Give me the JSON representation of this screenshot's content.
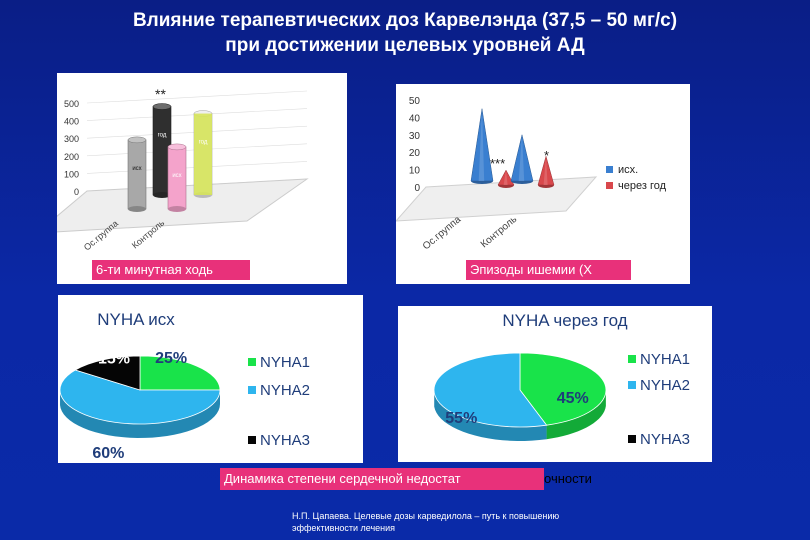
{
  "slide": {
    "title_line1": "Влияние терапевтических доз Карвелэнда (37,5 – 50 мг/с)",
    "title_line2": "при достижении целевых уровней АД",
    "footer_line1": "Н.П. Цапаева. Целевые дозы карведилола – путь к повышению",
    "footer_line2": "эффективности лечения"
  },
  "colors": {
    "background": "#0b24a0",
    "label_pink": "#e8317a",
    "pie_blue": "#2eb5ee",
    "pie_green": "#19e34a",
    "pie_black": "#050505",
    "cone_blue": "#3a7fd0",
    "cone_red": "#d9484c"
  },
  "chart_data": [
    {
      "type": "bar",
      "label": "6-ти минутная ходь",
      "categories": [
        "Ос.группа",
        "Контроль"
      ],
      "series": [
        {
          "name": "исх",
          "values": [
            370,
            330
          ]
        },
        {
          "name": "год",
          "values": [
            480,
            440
          ]
        }
      ],
      "ylim": [
        0,
        500
      ],
      "yticks": [
        "0",
        "100",
        "200",
        "300",
        "400",
        "500"
      ],
      "annotations": [
        "**"
      ]
    },
    {
      "type": "bar",
      "label": "Эпизоды ишемии (Х",
      "categories": [
        "Ос.группа",
        "Контроль"
      ],
      "series": [
        {
          "name": "исх.",
          "values": [
            45,
            30
          ]
        },
        {
          "name": "через год",
          "values": [
            12,
            20
          ]
        }
      ],
      "ylim": [
        0,
        50
      ],
      "yticks": [
        "0",
        "10",
        "20",
        "30",
        "40",
        "50"
      ],
      "annotations": [
        "***",
        "*"
      ]
    },
    {
      "type": "pie",
      "title": "NYHA исх",
      "slices": [
        {
          "name": "NYHA1",
          "value": 25,
          "label": "25%"
        },
        {
          "name": "NYHA2",
          "value": 60,
          "label": "60%"
        },
        {
          "name": "",
          "value": 0,
          "label": ""
        },
        {
          "name": "NYHA3",
          "value": 15,
          "label": "15%"
        }
      ]
    },
    {
      "type": "pie",
      "title": "NYHA через год",
      "slices": [
        {
          "name": "NYHA1",
          "value": 45,
          "label": "45%"
        },
        {
          "name": "NYHA2",
          "value": 55,
          "label": "55%"
        },
        {
          "name": "",
          "value": 0,
          "label": ""
        },
        {
          "name": "NYHA3",
          "value": 0,
          "label": ""
        }
      ]
    }
  ],
  "dynamics_label": "Динамика  степени сердечной недостат",
  "dynamics_label_tail": "очности"
}
